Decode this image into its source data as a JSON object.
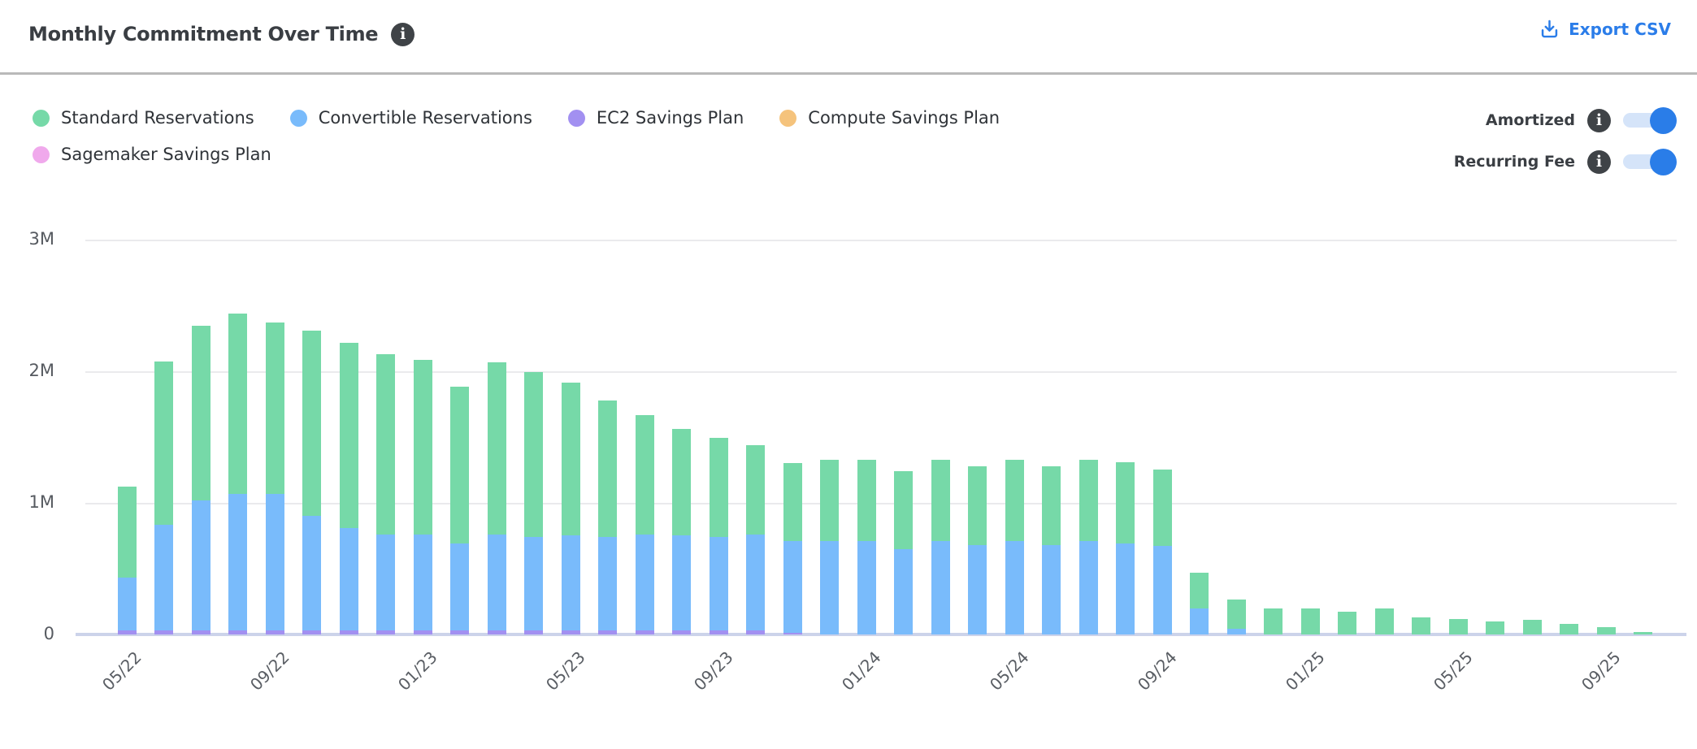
{
  "header": {
    "title": "Monthly Commitment Over Time",
    "export_label": "Export CSV"
  },
  "legend": {
    "items": [
      {
        "label": "Standard Reservations",
        "color": "#76d9a8"
      },
      {
        "label": "Convertible Reservations",
        "color": "#79bbfb"
      },
      {
        "label": "EC2 Savings Plan",
        "color": "#a290f1"
      },
      {
        "label": "Compute Savings Plan",
        "color": "#f5c37c"
      },
      {
        "label": "Sagemaker Savings Plan",
        "color": "#f0a9ec"
      }
    ]
  },
  "toggles": [
    {
      "label": "Amortized",
      "state": "on"
    },
    {
      "label": "Recurring Fee",
      "state": "on"
    }
  ],
  "colors": {
    "accent_blue": "#2b7de9",
    "toggle_track": "#d5e4f9",
    "info_icon_bg": "#3f4347",
    "gridline": "#eaeaed",
    "axis_line": "#ccd3ea"
  },
  "chart_data": {
    "type": "bar",
    "stacked": true,
    "unit": "M",
    "ylim": [
      0,
      3
    ],
    "yticks": [
      "0",
      "1M",
      "2M",
      "3M"
    ],
    "grid": true,
    "xtick_every": 4,
    "xtick_labels": [
      "05/22",
      "09/22",
      "01/23",
      "05/23",
      "09/23",
      "01/24",
      "05/24",
      "09/24",
      "01/25",
      "05/25",
      "09/25"
    ],
    "categories": [
      "05/22",
      "06/22",
      "07/22",
      "08/22",
      "09/22",
      "10/22",
      "11/22",
      "12/22",
      "01/23",
      "02/23",
      "03/23",
      "04/23",
      "05/23",
      "06/23",
      "07/23",
      "08/23",
      "09/23",
      "10/23",
      "11/23",
      "12/23",
      "01/24",
      "02/24",
      "03/24",
      "04/24",
      "05/24",
      "06/24",
      "07/24",
      "08/24",
      "09/24",
      "10/24",
      "11/24",
      "12/24",
      "01/25",
      "02/25",
      "03/25",
      "04/25",
      "05/25",
      "06/25",
      "07/25",
      "08/25",
      "09/25",
      "10/25"
    ],
    "series": [
      {
        "name": "Sagemaker Savings Plan",
        "color": "#f0a9ec",
        "values": [
          0,
          0,
          0,
          0,
          0,
          0,
          0,
          0,
          0,
          0,
          0,
          0,
          0,
          0,
          0,
          0,
          0,
          0,
          0,
          0,
          0,
          0,
          0,
          0,
          0,
          0,
          0,
          0,
          0,
          0,
          0,
          0,
          0,
          0,
          0,
          0,
          0,
          0,
          0,
          0,
          0,
          0
        ]
      },
      {
        "name": "Compute Savings Plan",
        "color": "#f5c37c",
        "values": [
          0,
          0,
          0,
          0,
          0,
          0,
          0,
          0,
          0,
          0,
          0,
          0,
          0,
          0,
          0,
          0,
          0,
          0,
          0,
          0,
          0,
          0,
          0,
          0,
          0,
          0,
          0,
          0,
          0,
          0,
          0,
          0,
          0,
          0,
          0,
          0,
          0,
          0,
          0,
          0,
          0,
          0
        ]
      },
      {
        "name": "EC2 Savings Plan",
        "color": "#a290f1",
        "values": [
          0.03,
          0.03,
          0.03,
          0.03,
          0.03,
          0.03,
          0.03,
          0.03,
          0.03,
          0.03,
          0.03,
          0.03,
          0.03,
          0.03,
          0.03,
          0.03,
          0.03,
          0.03,
          0.015,
          0,
          0,
          0,
          0,
          0,
          0,
          0,
          0,
          0,
          0,
          0,
          0,
          0,
          0,
          0,
          0,
          0,
          0,
          0,
          0,
          0,
          0,
          0
        ]
      },
      {
        "name": "Convertible Reservations",
        "color": "#79bbfb",
        "values": [
          0.4,
          0.8,
          0.99,
          1.04,
          1.04,
          0.87,
          0.78,
          0.73,
          0.73,
          0.66,
          0.73,
          0.71,
          0.72,
          0.71,
          0.73,
          0.72,
          0.71,
          0.73,
          0.7,
          0.71,
          0.71,
          0.65,
          0.71,
          0.68,
          0.71,
          0.68,
          0.71,
          0.69,
          0.67,
          0.2,
          0.045,
          0,
          0,
          0,
          0,
          0,
          0,
          0,
          0,
          0,
          0,
          0
        ]
      },
      {
        "name": "Standard Reservations",
        "color": "#76d9a8",
        "values": [
          0.69,
          1.24,
          1.33,
          1.37,
          1.3,
          1.41,
          1.41,
          1.37,
          1.33,
          1.19,
          1.31,
          1.25,
          1.16,
          1.04,
          0.91,
          0.81,
          0.75,
          0.68,
          0.59,
          0.62,
          0.62,
          0.59,
          0.62,
          0.6,
          0.62,
          0.6,
          0.62,
          0.62,
          0.58,
          0.27,
          0.225,
          0.2,
          0.2,
          0.175,
          0.2,
          0.13,
          0.115,
          0.1,
          0.11,
          0.08,
          0.055,
          0.02
        ]
      }
    ]
  }
}
